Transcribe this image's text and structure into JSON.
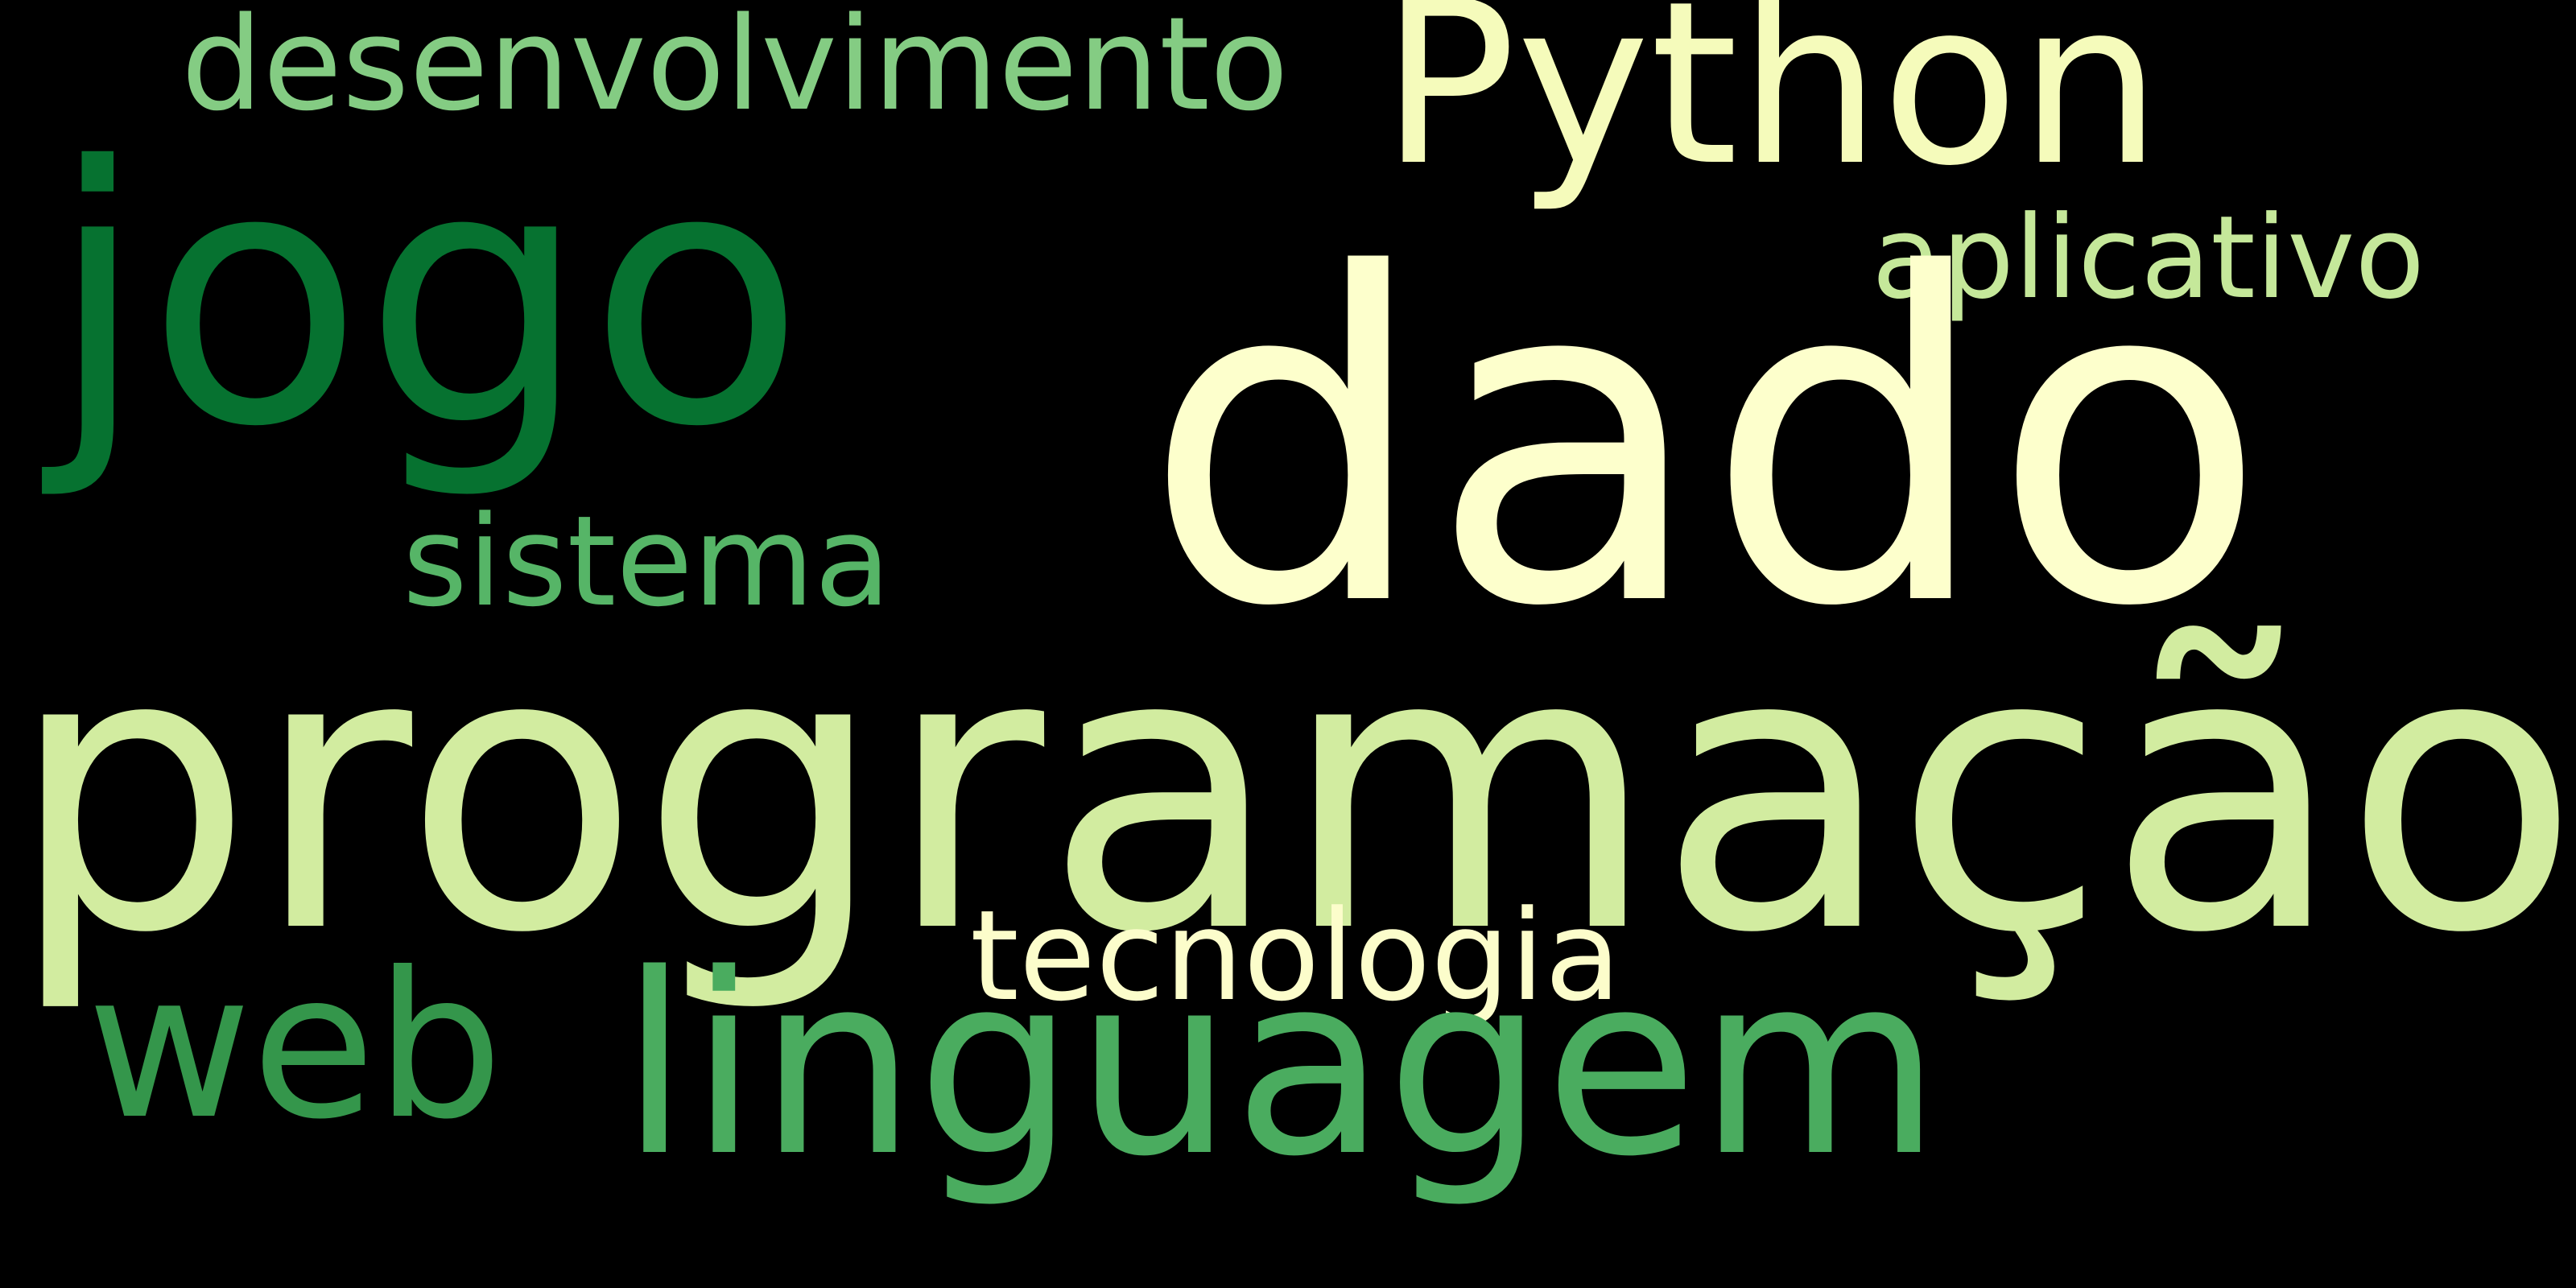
{
  "background": "#000000",
  "words": {
    "programacao": {
      "text": "programação",
      "color": "#d2eca0"
    },
    "dado": {
      "text": "dado",
      "color": "#fdffcc"
    },
    "jogo": {
      "text": "jogo",
      "color": "#067230"
    },
    "python": {
      "text": "Python",
      "color": "#f5fbbb"
    },
    "linguagem": {
      "text": "linguagem",
      "color": "#4aac5f"
    },
    "desenvolvimento": {
      "text": "desenvolvimento",
      "color": "#84cc83"
    },
    "aplicativo": {
      "text": "aplicativo",
      "color": "#c5e89a"
    },
    "sistema": {
      "text": "sistema",
      "color": "#56b567"
    },
    "tecnologia": {
      "text": "tecnologia",
      "color": "#fcfdcb"
    },
    "web": {
      "text": "web",
      "color": "#34964b"
    }
  }
}
